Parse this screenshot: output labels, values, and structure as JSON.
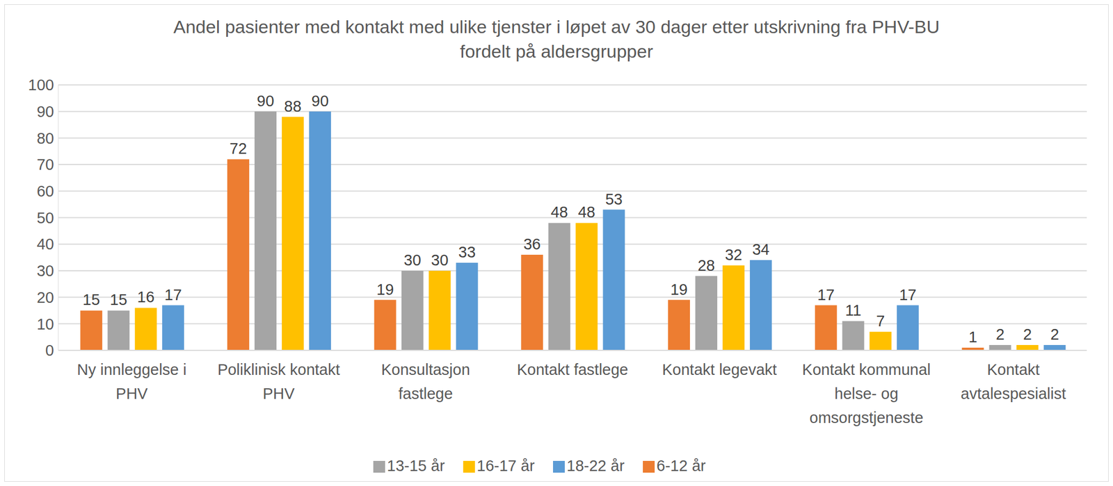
{
  "chart_data": {
    "type": "bar",
    "title": "Andel pasienter med kontakt med ulike tjenster i løpet av 30 dager etter utskrivning fra PHV-BU fordelt på aldersgrupper",
    "categories": [
      "Ny innleggelse i PHV",
      "Poliklinisk kontakt PHV",
      "Konsultasjon fastlege",
      "Kontakt fastlege",
      "Kontakt legevakt",
      "Kontakt kommunal helse- og omsorgstjeneste",
      "Kontakt avtalespesialist"
    ],
    "series": [
      {
        "name": "6-12 år",
        "color": "#ED7D31",
        "values": [
          15,
          72,
          19,
          36,
          19,
          17,
          1
        ]
      },
      {
        "name": "13-15 år",
        "color": "#A5A5A5",
        "values": [
          15,
          90,
          30,
          48,
          28,
          11,
          2
        ]
      },
      {
        "name": "16-17 år",
        "color": "#FFC000",
        "values": [
          16,
          88,
          30,
          48,
          32,
          7,
          2
        ]
      },
      {
        "name": "18-22 år",
        "color": "#5B9BD5",
        "values": [
          17,
          90,
          33,
          53,
          34,
          17,
          2
        ]
      }
    ],
    "ylim": [
      0,
      100
    ],
    "yticks": [
      0,
      10,
      20,
      30,
      40,
      50,
      60,
      70,
      80,
      90,
      100
    ],
    "grid": true,
    "legend": "bottom",
    "data_labels": true
  }
}
